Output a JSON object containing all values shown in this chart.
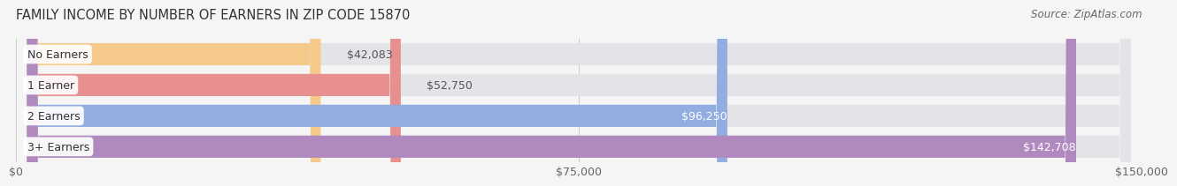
{
  "title": "FAMILY INCOME BY NUMBER OF EARNERS IN ZIP CODE 15870",
  "source": "Source: ZipAtlas.com",
  "categories": [
    "No Earners",
    "1 Earner",
    "2 Earners",
    "3+ Earners"
  ],
  "values": [
    42083,
    52750,
    96250,
    142708
  ],
  "bar_colors": [
    "#f5c98a",
    "#e89090",
    "#92aee0",
    "#b08abf"
  ],
  "bar_bg_color": "#e4e4e8",
  "label_colors": [
    "#555555",
    "#555555",
    "#ffffff",
    "#ffffff"
  ],
  "xlim": [
    0,
    150000
  ],
  "xticks": [
    0,
    75000,
    150000
  ],
  "xtick_labels": [
    "$0",
    "$75,000",
    "$150,000"
  ],
  "value_labels": [
    "$42,083",
    "$52,750",
    "$96,250",
    "$142,708"
  ],
  "title_fontsize": 10.5,
  "source_fontsize": 8.5,
  "tick_fontsize": 9,
  "bar_label_fontsize": 9,
  "category_fontsize": 9,
  "background_color": "#f5f5f5"
}
